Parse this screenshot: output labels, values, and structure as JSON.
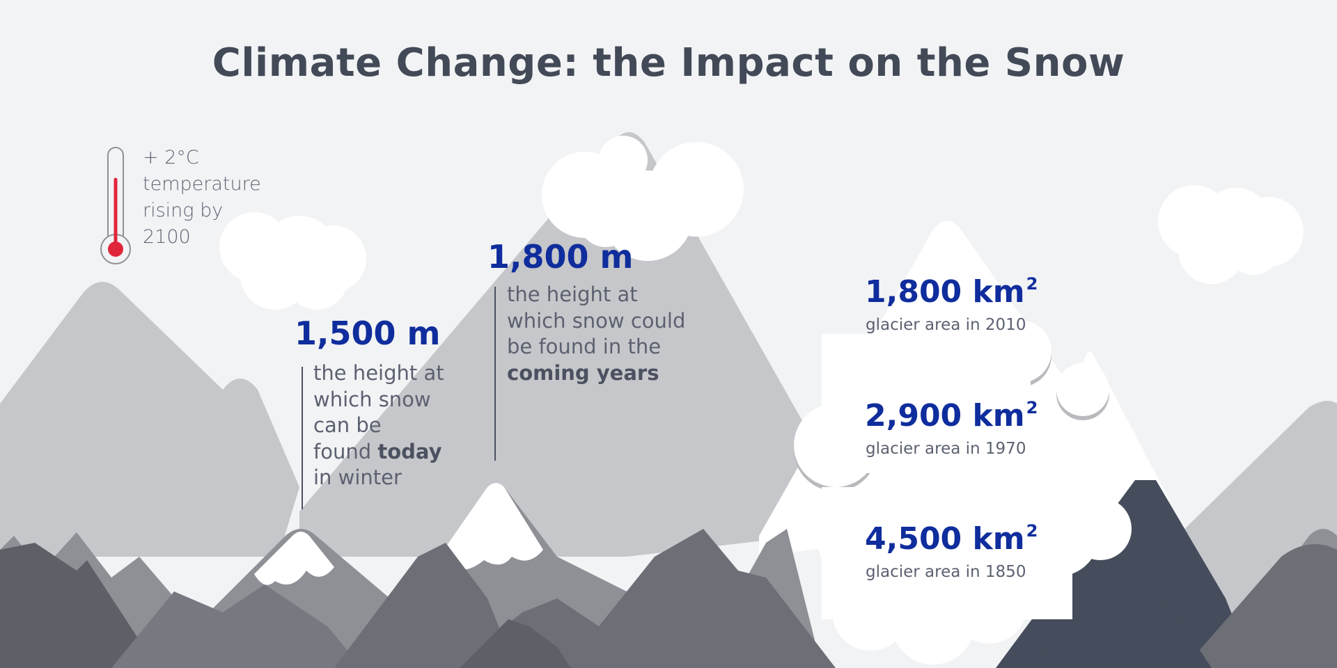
{
  "title": "Climate Change: the Impact on the Snow",
  "temperature": {
    "lines": [
      "+ 2°C",
      "temperature",
      "rising by",
      "2100"
    ]
  },
  "snow_today": {
    "value": "1,500 m",
    "desc_1": "the height at",
    "desc_2": "which snow",
    "desc_3": "can be",
    "desc_4a": "found ",
    "desc_4b": "today",
    "desc_5": "in winter"
  },
  "snow_future": {
    "value": "1,800 m",
    "desc_1": "the height at",
    "desc_2": "which snow could",
    "desc_3": "be found in the",
    "desc_4": "coming years"
  },
  "glaciers": [
    {
      "value": "1,800 km",
      "unit_sup": "2",
      "label": "glacier area in 2010"
    },
    {
      "value": "2,900 km",
      "unit_sup": "2",
      "label": "glacier area in 1970"
    },
    {
      "value": "4,500 km",
      "unit_sup": "2",
      "label": "glacier area in 1850"
    }
  ],
  "colors": {
    "background": "#f2f3f5",
    "accent_blue": "#0f2d9c",
    "text_dark": "#434a57",
    "thermometer_red": "#e0263a",
    "snow": "#ffffff",
    "mountain_light": "#c6c7ca",
    "mountain_mid": "#8e9096",
    "mountain_dark": "#5d6066",
    "mountain_navy": "#454c5b"
  }
}
